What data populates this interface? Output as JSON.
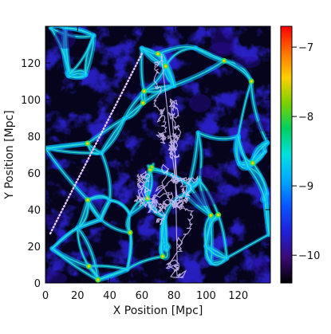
{
  "chart_data": {
    "type": "heatmap",
    "title": "",
    "xlabel": "X Position [Mpc]",
    "ylabel": "Y Position [Mpc]",
    "xlim": [
      0,
      140
    ],
    "ylim": [
      0,
      140
    ],
    "x_ticks": [
      "0",
      "20",
      "40",
      "60",
      "80",
      "100",
      "120"
    ],
    "y_ticks": [
      "0",
      "20",
      "40",
      "60",
      "80",
      "100",
      "120"
    ],
    "colorbar": {
      "range": [
        -10.4,
        -6.7
      ],
      "ticks": [
        "−10",
        "−9",
        "−8",
        "−7"
      ],
      "colors": [
        "#000000",
        "#3b0a78",
        "#2020d8",
        "#0a55ff",
        "#00a8ff",
        "#00e0e0",
        "#00d060",
        "#7ad000",
        "#ffd000",
        "#ff7000",
        "#ff0000"
      ]
    },
    "overlays": [
      {
        "type": "dotted-line",
        "points": [
          [
            3,
            27
          ],
          [
            60,
            125
          ]
        ],
        "color": "#e8c8ff"
      },
      {
        "type": "trajectory",
        "color": "#ffffff",
        "center": [
          75,
          60
        ],
        "extent_y": [
          3,
          130
        ]
      }
    ],
    "grid": false
  }
}
